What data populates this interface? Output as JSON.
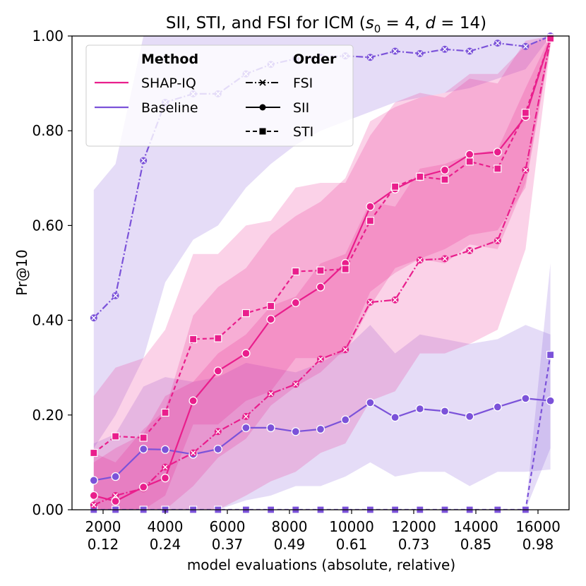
{
  "chart_data": {
    "type": "line",
    "title_main": "SII, STI, and FSI for ICM (",
    "title_math": "s",
    "title_sub": "0",
    "title_eq1": " = 4, ",
    "title_math2": "d",
    "title_eq2": " = 14)",
    "ylabel": "Pr@10",
    "xlabel": "model evaluations (absolute, relative)",
    "xlim": [
      1000,
      17000
    ],
    "ylim": [
      0,
      1
    ],
    "xticks": [
      {
        "value": 2000,
        "abs": "2000",
        "rel": "0.12"
      },
      {
        "value": 4000,
        "abs": "4000",
        "rel": "0.24"
      },
      {
        "value": 6000,
        "abs": "6000",
        "rel": "0.37"
      },
      {
        "value": 8000,
        "abs": "8000",
        "rel": "0.49"
      },
      {
        "value": 10000,
        "abs": "10000",
        "rel": "0.61"
      },
      {
        "value": 12000,
        "abs": "12000",
        "rel": "0.73"
      },
      {
        "value": 14000,
        "abs": "14000",
        "rel": "0.85"
      },
      {
        "value": 16000,
        "abs": "16000",
        "rel": "0.98"
      }
    ],
    "yticks": [
      {
        "value": 0.0,
        "label": "0.00"
      },
      {
        "value": 0.2,
        "label": "0.20"
      },
      {
        "value": 0.4,
        "label": "0.40"
      },
      {
        "value": 0.6,
        "label": "0.60"
      },
      {
        "value": 0.8,
        "label": "0.80"
      },
      {
        "value": 1.0,
        "label": "1.00"
      }
    ],
    "legend": {
      "method_title": "Method",
      "order_title": "Order",
      "methods": [
        {
          "name": "SHAP-IQ",
          "color": "#e91e8c"
        },
        {
          "name": "Baseline",
          "color": "#7b52d9"
        }
      ],
      "orders": [
        {
          "name": "FSI",
          "dash": "dashdot",
          "marker": "x"
        },
        {
          "name": "SII",
          "dash": "solid",
          "marker": "o"
        },
        {
          "name": "STI",
          "dash": "dashed",
          "marker": "s"
        }
      ]
    },
    "series": [
      {
        "name": "Baseline FSI",
        "method": "Baseline",
        "order": "FSI",
        "x": [
          1700,
          2400,
          3300,
          4000,
          4900,
          5700,
          6600,
          7400,
          8200,
          9000,
          9800,
          10600,
          11400,
          12200,
          13000,
          13800,
          14700,
          15600,
          16400
        ],
        "y": [
          0.405,
          0.452,
          0.737,
          0.86,
          0.878,
          0.878,
          0.92,
          0.94,
          0.952,
          0.955,
          0.958,
          0.955,
          0.968,
          0.963,
          0.972,
          0.968,
          0.985,
          0.978,
          1.0
        ],
        "lower": [
          0.13,
          0.2,
          0.32,
          0.48,
          0.57,
          0.6,
          0.68,
          0.73,
          0.77,
          0.8,
          0.82,
          0.84,
          0.86,
          0.87,
          0.88,
          0.89,
          0.91,
          0.93,
          1.0
        ],
        "upper": [
          0.675,
          0.73,
          1.0,
          1.0,
          1.0,
          1.0,
          1.0,
          1.0,
          1.0,
          1.0,
          1.0,
          1.0,
          1.0,
          1.0,
          1.0,
          1.0,
          1.0,
          1.0,
          1.0
        ]
      },
      {
        "name": "Baseline SII",
        "method": "Baseline",
        "order": "SII",
        "x": [
          1700,
          2400,
          3300,
          4000,
          4900,
          5700,
          6600,
          7400,
          8200,
          9000,
          9800,
          10600,
          11400,
          12200,
          13000,
          13800,
          14700,
          15600,
          16400
        ],
        "y": [
          0.062,
          0.07,
          0.128,
          0.127,
          0.117,
          0.128,
          0.173,
          0.173,
          0.165,
          0.17,
          0.19,
          0.226,
          0.195,
          0.213,
          0.208,
          0.197,
          0.217,
          0.235,
          0.23
        ],
        "lower": [
          0.0,
          0.0,
          0.0,
          0.0,
          0.0,
          0.0,
          0.02,
          0.03,
          0.05,
          0.05,
          0.07,
          0.1,
          0.07,
          0.08,
          0.08,
          0.05,
          0.08,
          0.08,
          0.085
        ],
        "upper": [
          0.14,
          0.16,
          0.26,
          0.28,
          0.27,
          0.28,
          0.31,
          0.3,
          0.29,
          0.31,
          0.34,
          0.39,
          0.33,
          0.37,
          0.36,
          0.35,
          0.36,
          0.39,
          0.37
        ]
      },
      {
        "name": "Baseline STI",
        "method": "Baseline",
        "order": "STI",
        "x": [
          1700,
          2400,
          3300,
          4000,
          4900,
          5700,
          6600,
          7400,
          8200,
          9000,
          9800,
          10600,
          11400,
          12200,
          13000,
          13800,
          14700,
          15600,
          16400
        ],
        "y": [
          0,
          0,
          0,
          0,
          0,
          0,
          0,
          0,
          0,
          0,
          0,
          0,
          0,
          0,
          0,
          0,
          0,
          0,
          0.327
        ],
        "lower": [
          0,
          0,
          0,
          0,
          0,
          0,
          0,
          0,
          0,
          0,
          0,
          0,
          0,
          0,
          0,
          0,
          0,
          0,
          0.13
        ],
        "upper": [
          0,
          0,
          0,
          0,
          0,
          0,
          0,
          0,
          0,
          0,
          0,
          0,
          0,
          0,
          0,
          0,
          0,
          0,
          0.52
        ]
      },
      {
        "name": "SHAP-IQ FSI",
        "method": "SHAP-IQ",
        "order": "FSI",
        "x": [
          1700,
          2400,
          3300,
          4000,
          4900,
          5700,
          6600,
          7400,
          8200,
          9000,
          9800,
          10600,
          11400,
          12200,
          13000,
          13800,
          14700,
          15600,
          16400
        ],
        "y": [
          0.01,
          0.03,
          0.045,
          0.09,
          0.12,
          0.165,
          0.197,
          0.245,
          0.265,
          0.318,
          0.338,
          0.438,
          0.443,
          0.527,
          0.53,
          0.547,
          0.568,
          0.717,
          0.993
        ],
        "lower": [
          0.0,
          0.0,
          0.0,
          0.0,
          0.0,
          0.0,
          0.03,
          0.06,
          0.08,
          0.12,
          0.14,
          0.23,
          0.25,
          0.33,
          0.33,
          0.35,
          0.38,
          0.55,
          0.98
        ],
        "upper": [
          0.1,
          0.13,
          0.16,
          0.24,
          0.27,
          0.33,
          0.37,
          0.43,
          0.45,
          0.52,
          0.54,
          0.65,
          0.64,
          0.72,
          0.73,
          0.75,
          0.76,
          0.89,
          1.0
        ]
      },
      {
        "name": "SHAP-IQ SII",
        "method": "SHAP-IQ",
        "order": "SII",
        "x": [
          1700,
          2400,
          3300,
          4000,
          4900,
          5700,
          6600,
          7400,
          8200,
          9000,
          9800,
          10600,
          11400,
          12200,
          13000,
          13800,
          14700,
          15600,
          16400
        ],
        "y": [
          0.03,
          0.018,
          0.048,
          0.067,
          0.23,
          0.293,
          0.33,
          0.402,
          0.437,
          0.47,
          0.52,
          0.64,
          0.677,
          0.703,
          0.717,
          0.75,
          0.755,
          0.83,
          0.995
        ],
        "lower": [
          0.0,
          0.0,
          0.0,
          0.0,
          0.05,
          0.11,
          0.15,
          0.22,
          0.26,
          0.29,
          0.34,
          0.46,
          0.5,
          0.53,
          0.55,
          0.58,
          0.59,
          0.68,
          0.98
        ],
        "upper": [
          0.12,
          0.1,
          0.17,
          0.21,
          0.41,
          0.47,
          0.51,
          0.58,
          0.62,
          0.65,
          0.7,
          0.82,
          0.85,
          0.87,
          0.88,
          0.92,
          0.92,
          0.98,
          1.0
        ]
      },
      {
        "name": "SHAP-IQ STI",
        "method": "SHAP-IQ",
        "order": "STI",
        "x": [
          1700,
          2400,
          3300,
          4000,
          4900,
          5700,
          6600,
          7400,
          8200,
          9000,
          9800,
          10600,
          11400,
          12200,
          13000,
          13800,
          14700,
          15600,
          16400
        ],
        "y": [
          0.12,
          0.155,
          0.152,
          0.205,
          0.36,
          0.362,
          0.415,
          0.43,
          0.503,
          0.505,
          0.508,
          0.61,
          0.682,
          0.703,
          0.697,
          0.735,
          0.72,
          0.838,
          0.995
        ],
        "lower": [
          0.0,
          0.0,
          0.0,
          0.03,
          0.18,
          0.18,
          0.23,
          0.25,
          0.32,
          0.32,
          0.33,
          0.43,
          0.51,
          0.53,
          0.52,
          0.56,
          0.55,
          0.69,
          0.98
        ],
        "upper": [
          0.24,
          0.3,
          0.32,
          0.38,
          0.54,
          0.54,
          0.6,
          0.61,
          0.68,
          0.69,
          0.69,
          0.79,
          0.86,
          0.88,
          0.87,
          0.91,
          0.9,
          0.99,
          1.0
        ]
      }
    ]
  }
}
